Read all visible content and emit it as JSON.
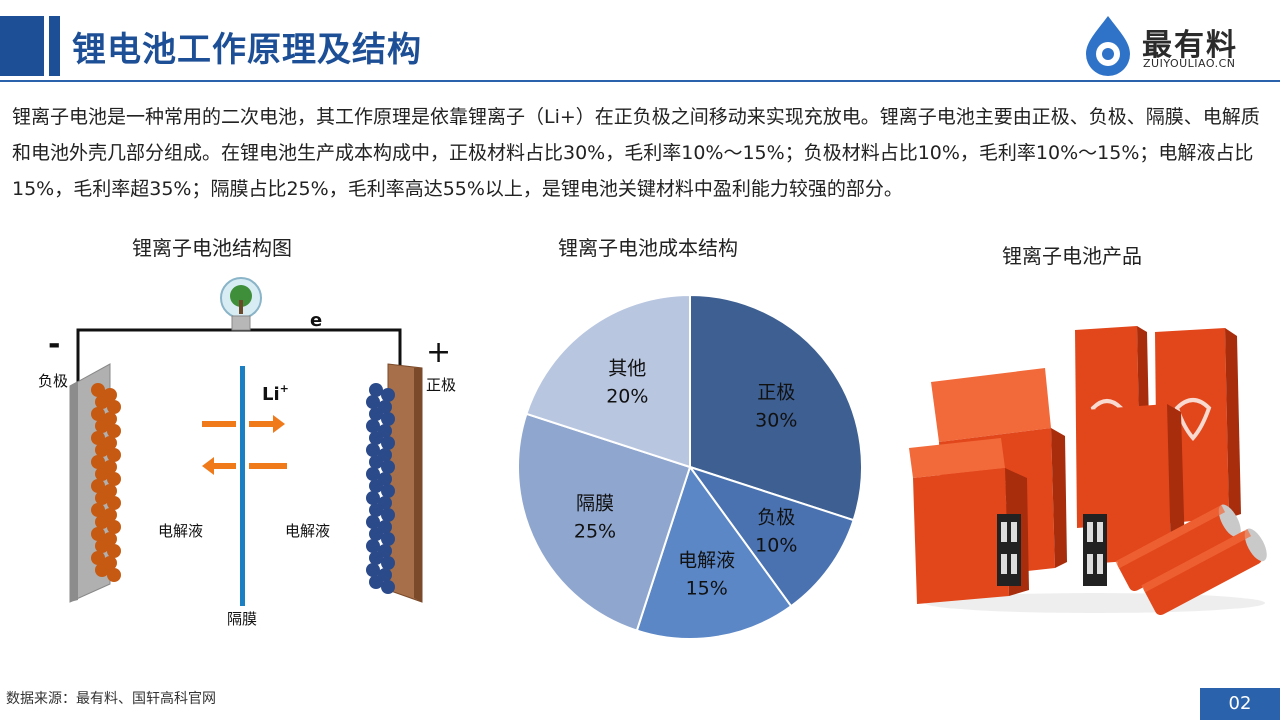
{
  "title": "锂电池工作原理及结构",
  "logo": {
    "brand": "最有料",
    "domain": "ZUIYOULIAO.CN"
  },
  "intro": "锂离子电池是一种常用的二次电池，其工作原理是依靠锂离子（Li+）在正负极之间移动来实现充放电。锂离子电池主要由正极、负极、隔膜、电解质和电池外壳几部分组成。在锂电池生产成本构成中，正极材料占比30%，毛利率10%～15%；负极材料占比10%，毛利率10%～15%；电解液占比15%，毛利率超35%；隔膜占比25%，毛利率高达55%以上，是锂电池关键材料中盈利能力较强的部分。",
  "diagram": {
    "caption": "锂离子电池结构图",
    "minus": "-",
    "plus": "+",
    "anode": "负极",
    "cathode": "正极",
    "electron": "e",
    "ion": "Li",
    "ion_sup": "+",
    "electrolyte_left": "电解液",
    "electrolyte_right": "电解液",
    "separator": "隔膜",
    "colors": {
      "anode_particle": "#c65a12",
      "cathode_particle": "#2b4a8a",
      "arrow": "#f07a1a",
      "separator": "#1b7fc4"
    }
  },
  "pie_caption": "锂离子电池成本结构",
  "chart_data": {
    "type": "pie",
    "title": "锂离子电池成本结构",
    "slices": [
      {
        "label": "正极",
        "value": 30,
        "display": "30%",
        "color": "#3d5f91"
      },
      {
        "label": "负极",
        "value": 10,
        "display": "10%",
        "color": "#4a72b0"
      },
      {
        "label": "电解液",
        "value": 15,
        "display": "15%",
        "color": "#5b87c6"
      },
      {
        "label": "隔膜",
        "value": 25,
        "display": "25%",
        "color": "#8fa6cf"
      },
      {
        "label": "其他",
        "value": 20,
        "display": "20%",
        "color": "#b8c6e0"
      }
    ],
    "start": "12 o'clock",
    "direction": "clockwise"
  },
  "products": {
    "caption": "锂离子电池产品",
    "colors": {
      "body": "#e2471b",
      "dark": "#a82d0d",
      "light": "#f26a3a"
    }
  },
  "footer": {
    "source": "数据来源：最有料、国轩高科官网",
    "page": "02"
  }
}
